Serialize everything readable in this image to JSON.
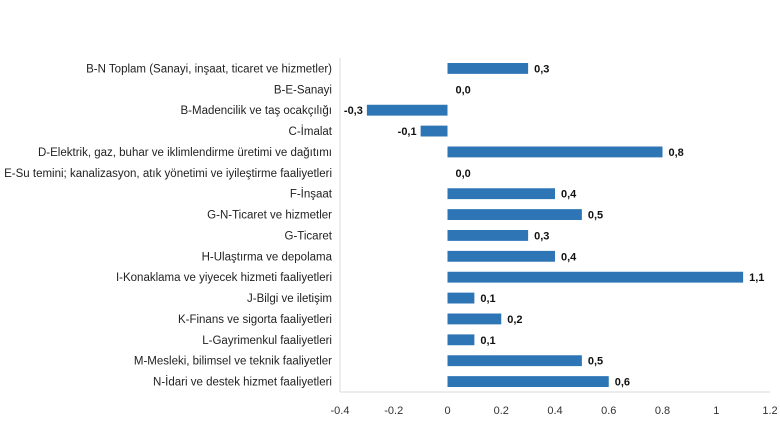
{
  "chart_data": {
    "type": "bar",
    "orientation": "horizontal",
    "categories": [
      "B-N Toplam (Sanayi, inşaat, ticaret ve hizmetler)",
      "B-E-Sanayi",
      "B-Madencilik ve taş ocakçılığı",
      "C-İmalat",
      "D-Elektrik, gaz, buhar ve iklimlendirme üretimi ve dağıtımı",
      "E-Su temini; kanalizasyon, atık yönetimi ve iyileştirme faaliyetleri",
      "F-İnşaat",
      "G-N-Ticaret ve hizmetler",
      "G-Ticaret",
      "H-Ulaştırma ve depolama",
      "I-Konaklama ve yiyecek hizmeti faaliyetleri",
      "J-Bilgi ve iletişim",
      "K-Finans ve sigorta faaliyetleri",
      "L-Gayrimenkul faaliyetleri",
      "M-Mesleki, bilimsel ve teknik faaliyetler",
      "N-İdari ve destek hizmet faaliyetleri"
    ],
    "values": [
      0.3,
      0.0,
      -0.3,
      -0.1,
      0.8,
      0.0,
      0.4,
      0.5,
      0.3,
      0.4,
      1.1,
      0.1,
      0.2,
      0.1,
      0.5,
      0.6
    ],
    "value_labels": [
      "0,3",
      "0,0",
      "-0,3",
      "-0,1",
      "0,8",
      "0,0",
      "0,4",
      "0,5",
      "0,3",
      "0,4",
      "1,1",
      "0,1",
      "0,2",
      "0,1",
      "0,5",
      "0,6"
    ],
    "x_ticks": [
      -0.4,
      -0.2,
      0,
      0.2,
      0.4,
      0.6,
      0.8,
      1,
      1.2
    ],
    "x_tick_labels": [
      "-0.4",
      "-0.2",
      "0",
      "0.2",
      "0.4",
      "0.6",
      "0.8",
      "1",
      "1.2"
    ],
    "xlim": [
      -0.4,
      1.2
    ],
    "bar_color": "#2E75B6",
    "grid": false,
    "title": "",
    "xlabel": "",
    "ylabel": ""
  }
}
